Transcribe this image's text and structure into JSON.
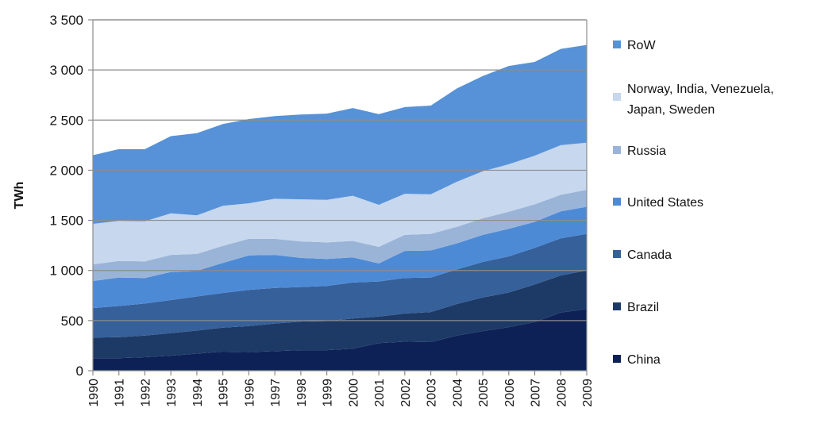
{
  "chart_data": {
    "type": "area",
    "stacked": true,
    "title": "",
    "xlabel": "",
    "ylabel": "TWh",
    "ylim": [
      0,
      3500
    ],
    "y_ticks": [
      0,
      500,
      1000,
      1500,
      2000,
      2500,
      3000,
      3500
    ],
    "y_tick_labels": [
      "0",
      "500",
      "1 000",
      "1 500",
      "2 000",
      "2 500",
      "3 000",
      "3 500"
    ],
    "x": [
      "1990",
      "1991",
      "1992",
      "1993",
      "1994",
      "1995",
      "1996",
      "1997",
      "1998",
      "1999",
      "2000",
      "2001",
      "2002",
      "2003",
      "2004",
      "2005",
      "2006",
      "2007",
      "2008",
      "2009"
    ],
    "legend_position": "right",
    "series": [
      {
        "name": "China",
        "color": "#0d2157",
        "values": [
          125,
          125,
          135,
          150,
          170,
          190,
          185,
          195,
          205,
          205,
          220,
          275,
          290,
          285,
          350,
          395,
          435,
          485,
          580,
          615
        ]
      },
      {
        "name": "Brazil",
        "color": "#1d3a66",
        "values": [
          205,
          210,
          215,
          225,
          230,
          240,
          260,
          275,
          285,
          290,
          300,
          265,
          280,
          300,
          315,
          335,
          345,
          375,
          370,
          385
        ]
      },
      {
        "name": "Canada",
        "color": "#36609a",
        "values": [
          295,
          310,
          320,
          330,
          340,
          345,
          360,
          355,
          345,
          350,
          360,
          350,
          355,
          345,
          345,
          355,
          360,
          365,
          370,
          365
        ]
      },
      {
        "name": "United States",
        "color": "#4d8ad6",
        "values": [
          270,
          285,
          255,
          280,
          255,
          300,
          345,
          330,
          290,
          270,
          250,
          180,
          270,
          270,
          260,
          270,
          275,
          260,
          270,
          270
        ]
      },
      {
        "name": "Russia",
        "color": "#9ab4d8",
        "values": [
          165,
          165,
          165,
          170,
          170,
          170,
          165,
          160,
          165,
          165,
          165,
          165,
          160,
          165,
          165,
          165,
          170,
          175,
          165,
          170
        ]
      },
      {
        "name": "Norway, India, Venezuela, Japan, Sweden",
        "color": "#c6d7ee",
        "values": [
          405,
          400,
          400,
          415,
          385,
          400,
          355,
          400,
          420,
          425,
          450,
          420,
          410,
          395,
          450,
          470,
          475,
          485,
          495,
          470
        ]
      },
      {
        "name": "RoW",
        "color": "#5792d8",
        "values": [
          685,
          715,
          720,
          770,
          820,
          815,
          840,
          825,
          845,
          860,
          875,
          905,
          865,
          885,
          930,
          950,
          980,
          935,
          960,
          975
        ]
      }
    ]
  }
}
